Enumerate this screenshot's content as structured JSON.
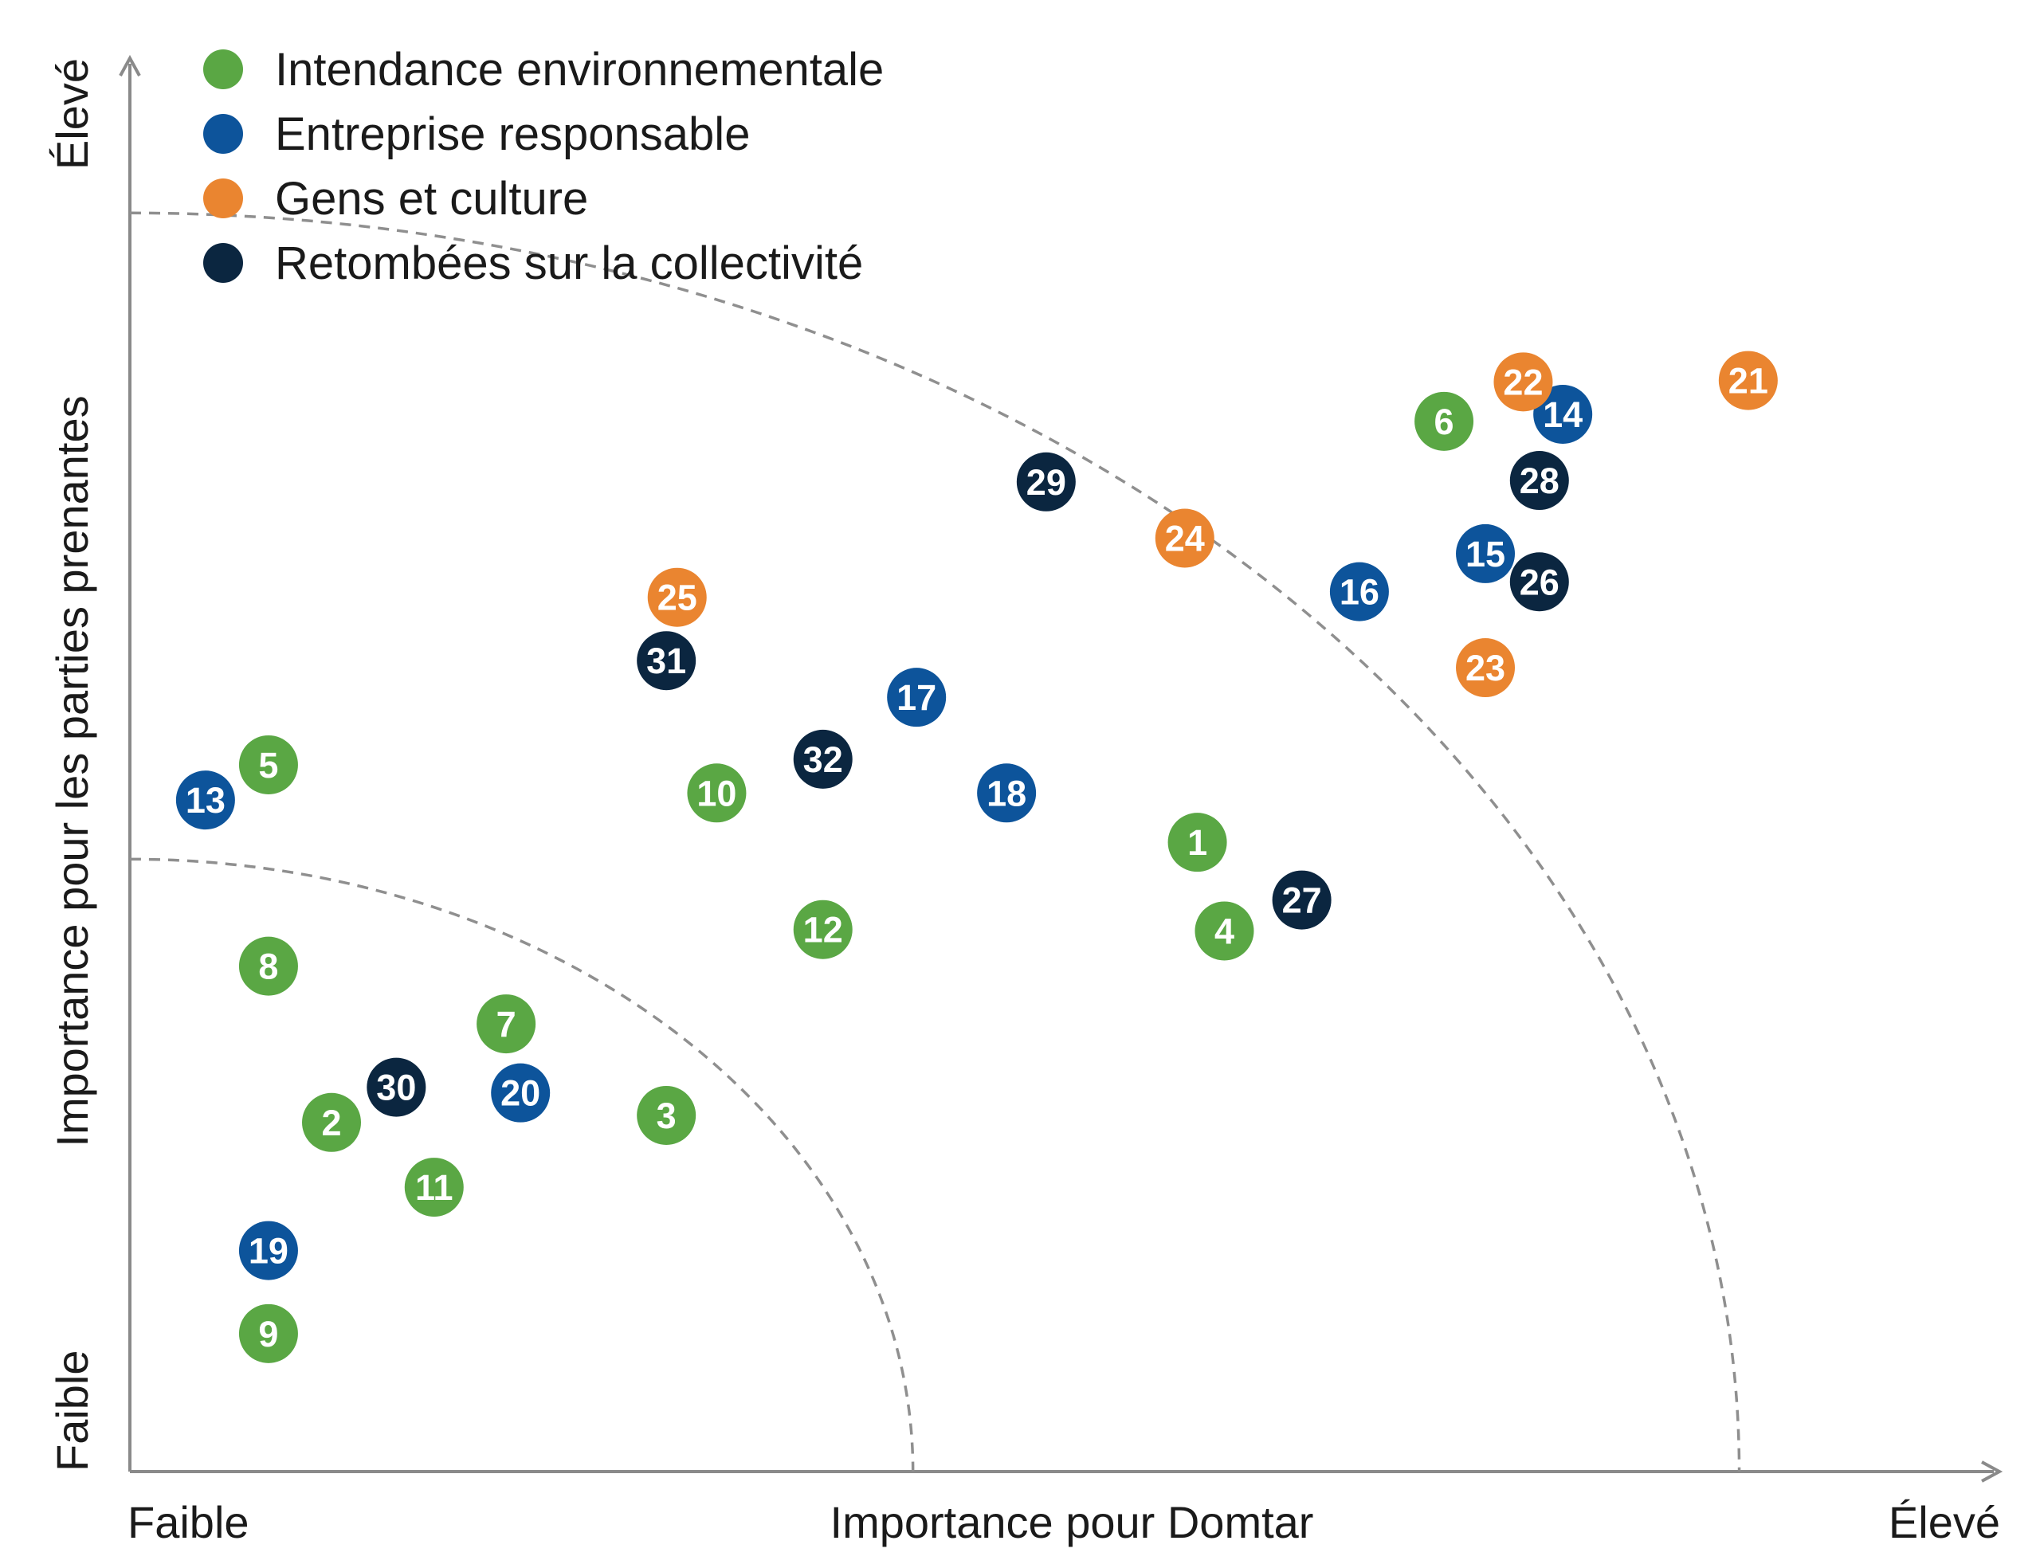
{
  "chart_data": {
    "type": "scatter",
    "xlabel": "Importance pour Domtar",
    "ylabel": "Importance pour les parties prenantes",
    "x_low": "Faible",
    "x_high": "Élevé",
    "y_low": "Faible",
    "y_high": "Élevé",
    "xlim": [
      0,
      100
    ],
    "ylim": [
      0,
      100
    ],
    "grid": false,
    "legend_position": "top-left",
    "thresholds": [
      {
        "name": "inner-threshold",
        "radius": 43.5
      },
      {
        "name": "outer-threshold",
        "radius": 89.4
      }
    ],
    "series": [
      {
        "name": "Intendance environnementale",
        "color": "#5aa744",
        "points": [
          {
            "id": "1",
            "x": 59.3,
            "y": 44.7
          },
          {
            "id": "2",
            "x": 11.2,
            "y": 24.8
          },
          {
            "id": "3",
            "x": 29.8,
            "y": 25.3
          },
          {
            "id": "4",
            "x": 60.8,
            "y": 38.4
          },
          {
            "id": "5",
            "x": 7.7,
            "y": 50.2
          },
          {
            "id": "6",
            "x": 73.0,
            "y": 74.6
          },
          {
            "id": "7",
            "x": 20.9,
            "y": 31.8
          },
          {
            "id": "8",
            "x": 7.7,
            "y": 35.9
          },
          {
            "id": "9",
            "x": 7.7,
            "y": 9.8
          },
          {
            "id": "10",
            "x": 32.6,
            "y": 48.2
          },
          {
            "id": "11",
            "x": 16.9,
            "y": 20.2
          },
          {
            "id": "12",
            "x": 38.5,
            "y": 38.5
          }
        ]
      },
      {
        "name": "Entreprise responsable",
        "color": "#0d549b",
        "points": [
          {
            "id": "13",
            "x": 4.2,
            "y": 47.7
          },
          {
            "id": "14",
            "x": 79.6,
            "y": 75.1
          },
          {
            "id": "15",
            "x": 75.3,
            "y": 65.2
          },
          {
            "id": "16",
            "x": 68.3,
            "y": 62.5
          },
          {
            "id": "17",
            "x": 43.7,
            "y": 55.0
          },
          {
            "id": "18",
            "x": 48.7,
            "y": 48.2
          },
          {
            "id": "19",
            "x": 7.7,
            "y": 15.7
          },
          {
            "id": "20",
            "x": 21.7,
            "y": 26.9
          }
        ]
      },
      {
        "name": "Gens et culture",
        "color": "#ea8530",
        "points": [
          {
            "id": "21",
            "x": 89.9,
            "y": 77.5
          },
          {
            "id": "22",
            "x": 77.4,
            "y": 77.4
          },
          {
            "id": "23",
            "x": 75.3,
            "y": 57.1
          },
          {
            "id": "24",
            "x": 58.6,
            "y": 66.3
          },
          {
            "id": "25",
            "x": 30.4,
            "y": 62.1
          }
        ]
      },
      {
        "name": "Retombées sur la collectivité",
        "color": "#0b2640",
        "points": [
          {
            "id": "26",
            "x": 78.3,
            "y": 63.2
          },
          {
            "id": "27",
            "x": 65.1,
            "y": 40.6
          },
          {
            "id": "28",
            "x": 78.3,
            "y": 70.4
          },
          {
            "id": "29",
            "x": 50.9,
            "y": 70.3
          },
          {
            "id": "30",
            "x": 14.8,
            "y": 27.3
          },
          {
            "id": "31",
            "x": 29.8,
            "y": 57.6
          },
          {
            "id": "32",
            "x": 38.5,
            "y": 50.6
          }
        ]
      }
    ]
  }
}
